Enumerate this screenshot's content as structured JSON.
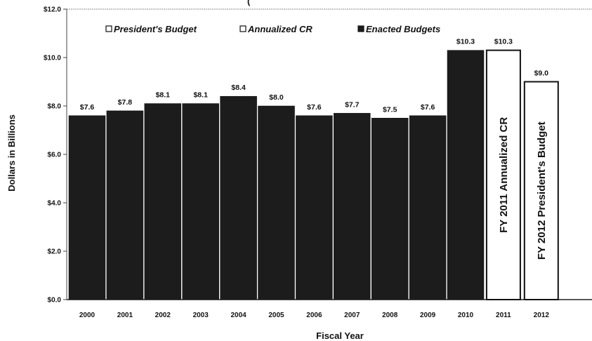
{
  "chart_data": {
    "type": "bar",
    "title": "(",
    "xlabel": "Fiscal Year",
    "ylabel": "Dollars in Billions",
    "ylim": [
      0,
      12
    ],
    "yticks": [
      "$0.0",
      "$2.0",
      "$4.0",
      "$6.0",
      "$8.0",
      "$10.0",
      "$12.0"
    ],
    "categories": [
      "2000",
      "2001",
      "2002",
      "2003",
      "2004",
      "2005",
      "2006",
      "2007",
      "2008",
      "2009",
      "2010",
      "2011",
      "2012"
    ],
    "values": [
      7.6,
      7.8,
      8.1,
      8.1,
      8.4,
      8.0,
      7.6,
      7.7,
      7.5,
      7.6,
      10.3,
      10.3,
      9.0
    ],
    "value_labels": [
      "$7.6",
      "$7.8",
      "$8.1",
      "$8.1",
      "$8.4",
      "$8.0",
      "$7.6",
      "$7.7",
      "$7.5",
      "$7.6",
      "$10.3",
      "$10.3",
      "$9.0"
    ],
    "bar_kinds": [
      "enacted",
      "enacted",
      "enacted",
      "enacted",
      "enacted",
      "enacted",
      "enacted",
      "enacted",
      "enacted",
      "enacted",
      "enacted",
      "cr",
      "president"
    ],
    "bar_text": {
      "2011": "FY 2011 Annualized CR",
      "2012": "FY 2012 President's Budget"
    },
    "legend": [
      {
        "key": "president",
        "label": "President's Budget"
      },
      {
        "key": "cr",
        "label": "Annualized CR"
      },
      {
        "key": "enacted",
        "label": "Enacted Budgets"
      }
    ],
    "legend_position": "top",
    "grid": false,
    "colors": {
      "enacted": "#1c1c1c",
      "cr": "#ffffff",
      "president": "#ffffff",
      "outline": "#111111"
    }
  }
}
